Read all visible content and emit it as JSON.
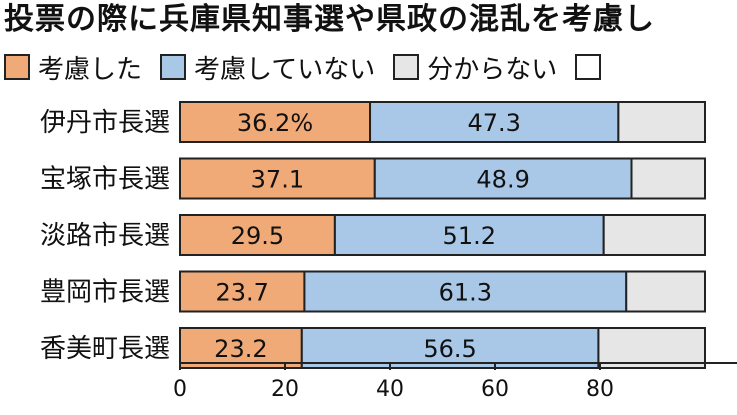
{
  "chart_data": {
    "type": "bar",
    "orientation": "horizontal",
    "stacked": true,
    "title": "投票の際に兵庫県知事選や県政の混乱を考慮し",
    "categories": [
      "伊丹市長選",
      "宝塚市長選",
      "淡路市長選",
      "豊岡市長選",
      "香美町長選"
    ],
    "series": [
      {
        "name": "考慮した",
        "color": "#efaa78",
        "values": [
          36.2,
          37.1,
          29.5,
          23.7,
          23.2
        ],
        "labels": [
          "36.2%",
          "37.1",
          "29.5",
          "23.7",
          "23.2"
        ]
      },
      {
        "name": "考慮していない",
        "color": "#a9c8e8",
        "values": [
          47.3,
          48.9,
          51.2,
          61.3,
          56.5
        ],
        "labels": [
          "47.3",
          "48.9",
          "51.2",
          "61.3",
          "56.5"
        ]
      },
      {
        "name": "分からない",
        "color": "#e6e6e6",
        "values": [
          16.5,
          14.0,
          19.3,
          15.0,
          20.3
        ],
        "labels": [
          "",
          "",
          "",
          "",
          ""
        ]
      }
    ],
    "legend_extra": {
      "name": "",
      "color": "#ffffff"
    },
    "xlim": [
      0,
      100
    ],
    "xticks": [
      0,
      20,
      40,
      60,
      80
    ],
    "grid": false,
    "legend_position": "top"
  }
}
